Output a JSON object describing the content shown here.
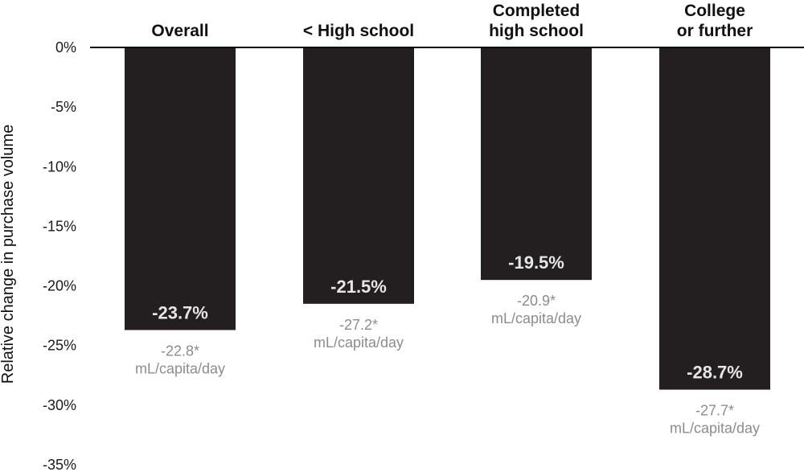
{
  "chart_data": {
    "type": "bar",
    "title": "",
    "xlabel": "",
    "ylabel": "Relative change in purchase volume",
    "ylim": [
      -35,
      0
    ],
    "yticks": [
      0,
      -5,
      -10,
      -15,
      -20,
      -25,
      -30,
      -35
    ],
    "ytick_labels": [
      "0%",
      "-5%",
      "-10%",
      "-15%",
      "-20%",
      "-25%",
      "-30%",
      "-35%"
    ],
    "categories": [
      [
        "Overall"
      ],
      [
        "< High school"
      ],
      [
        "Completed",
        "high school"
      ],
      [
        "College",
        "or further"
      ]
    ],
    "values": [
      -23.7,
      -21.5,
      -19.5,
      -28.7
    ],
    "value_labels": [
      "-23.7%",
      "-21.5%",
      "-19.5%",
      "-28.7%"
    ],
    "absolute_labels": [
      [
        "-22.8*",
        "mL/capita/day"
      ],
      [
        "-27.2*",
        "mL/capita/day"
      ],
      [
        "-20.9*",
        "mL/capita/day"
      ],
      [
        "-27.7*",
        "mL/capita/day"
      ]
    ],
    "colors": {
      "bar": "#231f20",
      "bar_label": "#e6e6e6",
      "absolute_label": "#8c8c8c",
      "axis": "#000000"
    }
  }
}
